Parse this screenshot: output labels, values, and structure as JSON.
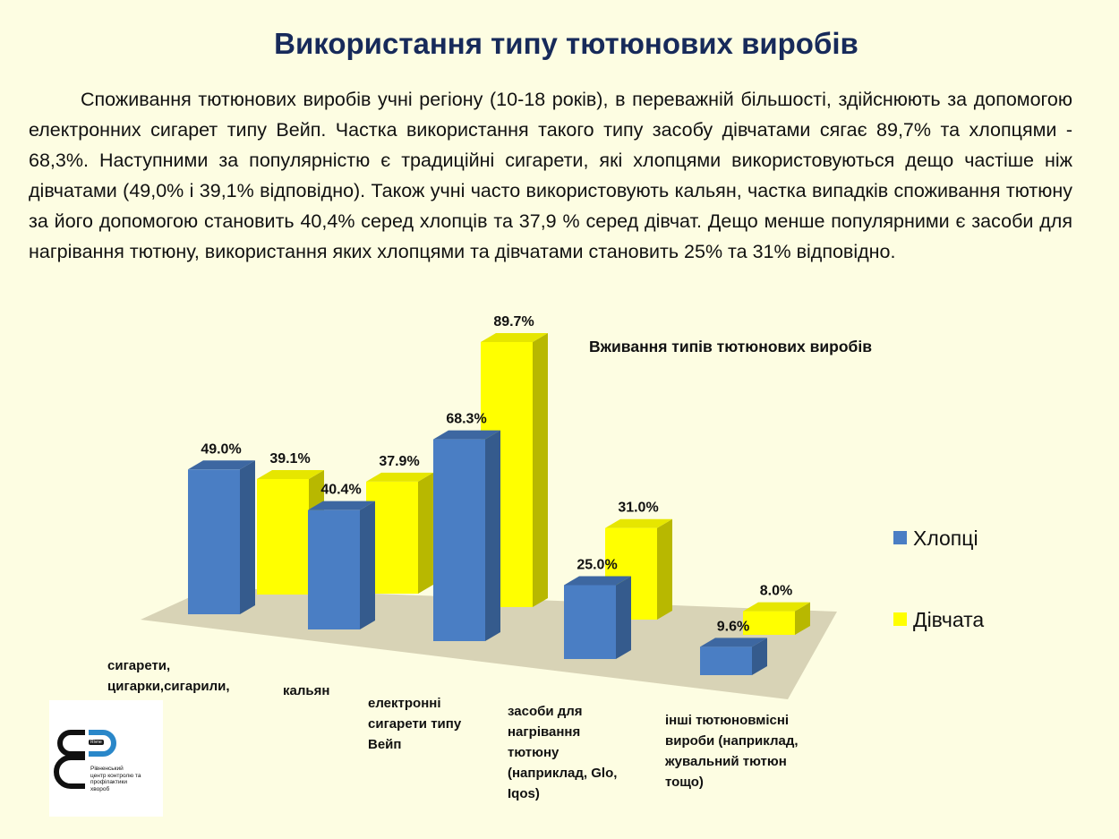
{
  "page": {
    "title": "Використання типу тютюнових виробів",
    "paragraph": "Споживання тютюнових виробів учні регіону (10-18 років), в переважній більшості, здійснюють за допомогою електронних сигарет типу Вейп.  Частка використання такого типу засобу дівчатами  сягає 89,7% та хлопцями - 68,3%. Наступними за популярністю є традиційні сигарети, які хлопцями використовуються дещо частіше ніж дівчатами (49,0% і 39,1% відповідно). Також учні часто використовують кальян, частка випадків споживання тютюну за його допомогою становить  40,4% серед хлопців та 37,9 % серед дівчат. Дещо менше популярними є засоби для нагрівання тютюну, використання  яких хлопцями та дівчатами становить 25% та 31% відповідно."
  },
  "chart_data": {
    "type": "bar",
    "title": "Вживання типів тютюнових виробів",
    "categories": [
      "сигарети, цигарки,сигарили, сигари",
      "кальян",
      "електронні сигарети типу Вейп",
      "засоби для нагрівання тютюну (наприклад, Glo, Iqos)",
      "інші тютюновмісні вироби (наприклад, жувальний тютюн тощо)"
    ],
    "series": [
      {
        "name": "Хлопці",
        "values": [
          49.0,
          40.4,
          68.3,
          25.0,
          9.6
        ],
        "labels": [
          "49.0%",
          "40.4%",
          "68.3%",
          "25.0%",
          "9.6%"
        ],
        "color": "#4a7ec4"
      },
      {
        "name": "Дівчата",
        "values": [
          39.1,
          37.9,
          89.7,
          31.0,
          8.0
        ],
        "labels": [
          "39.1%",
          "37.9%",
          "89.7%",
          "31.0%",
          "8.0%"
        ],
        "color": "#ffff00"
      }
    ],
    "legend_position": "right",
    "style": "3d-clustered-column"
  },
  "category_labels": [
    "сигарети,\nцигарки,сигарили,\nсигари",
    "кальян",
    "електронні\nсигарети типу\nВейп",
    "засоби для\nнагрівання\nтютюну\n(наприклад, Glo,\nIqos)",
    "інші тютюновмісні\nвироби (наприклад,\nжувальний тютюн\nтощо)"
  ],
  "logo": {
    "text": "Рівненський\nцентр контролю та\nпрофілактики\nхвороб",
    "badge": "Rivne"
  }
}
